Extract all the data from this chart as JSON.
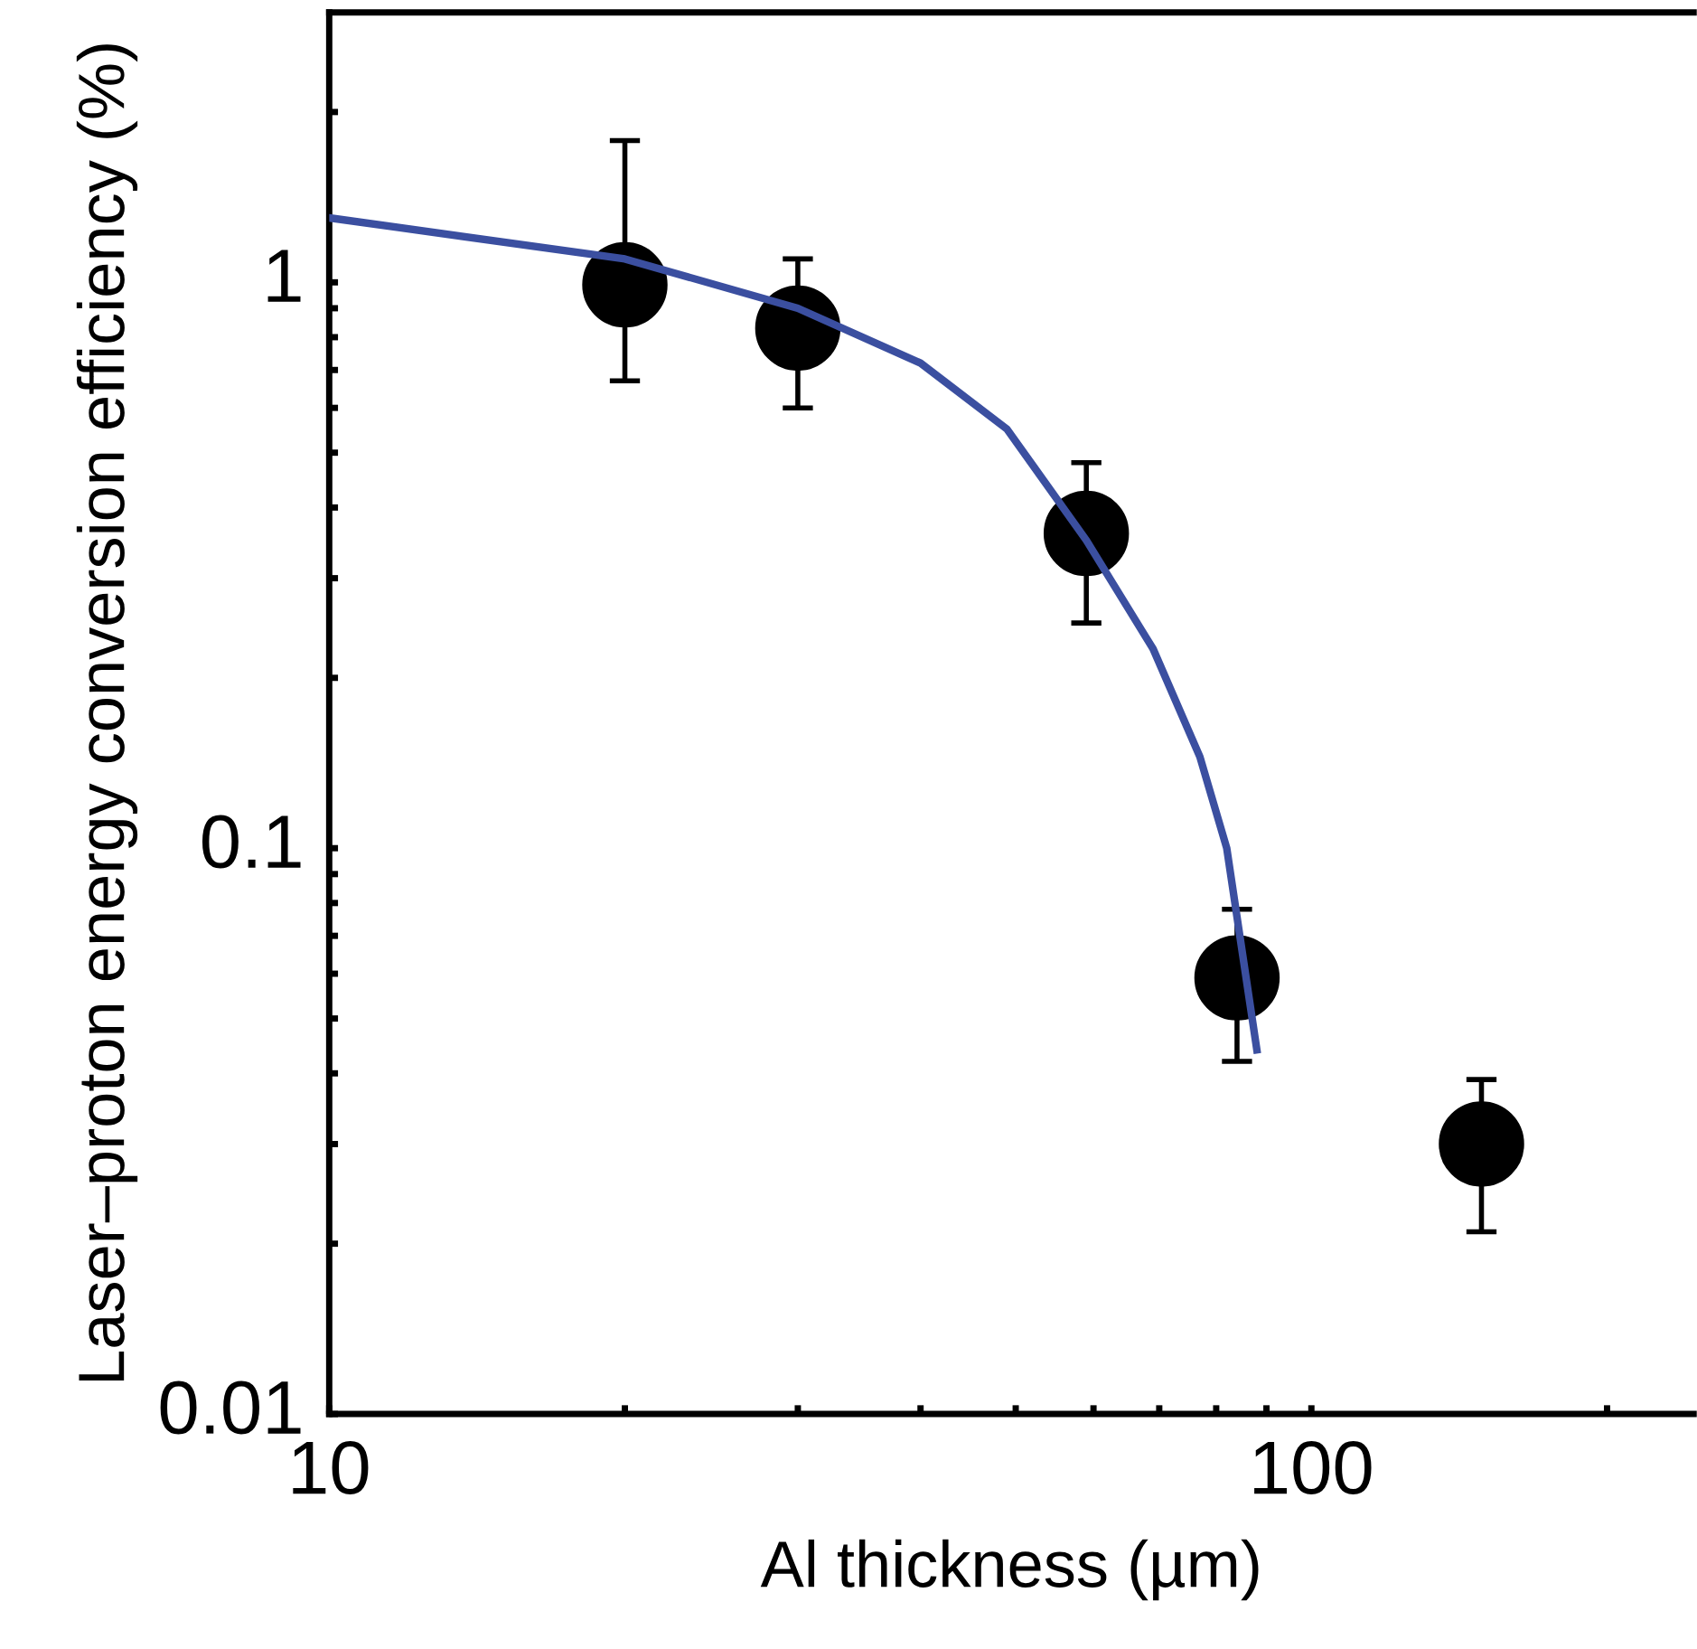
{
  "chart_data": {
    "type": "scatter",
    "xlabel": "Al thickness (µm)",
    "ylabel": "Laser–proton energy conversion efficiency (%)",
    "log": "xy",
    "xlim": [
      10,
      245
    ],
    "ylim": [
      0.01,
      3
    ],
    "xticks": [
      10,
      {
        "value": 20,
        "label": null
      },
      {
        "value": 30,
        "label": null
      },
      {
        "value": 40,
        "label": null
      },
      {
        "value": 50,
        "label": null
      },
      {
        "value": 60,
        "label": null
      },
      {
        "value": 70,
        "label": null
      },
      {
        "value": 80,
        "label": null
      },
      {
        "value": 90,
        "label": null
      },
      100,
      {
        "value": 200,
        "label": null
      }
    ],
    "yticks": [
      0.01,
      {
        "value": 0.02,
        "label": null
      },
      {
        "value": 0.03,
        "label": null
      },
      {
        "value": 0.04,
        "label": null
      },
      {
        "value": 0.05,
        "label": null
      },
      {
        "value": 0.06,
        "label": null
      },
      {
        "value": 0.07,
        "label": null
      },
      {
        "value": 0.08,
        "label": null
      },
      {
        "value": 0.09,
        "label": null
      },
      0.1,
      {
        "value": 0.2,
        "label": null
      },
      {
        "value": 0.3,
        "label": null
      },
      {
        "value": 0.4,
        "label": null
      },
      {
        "value": 0.5,
        "label": null
      },
      {
        "value": 0.6,
        "label": null
      },
      {
        "value": 0.7,
        "label": null
      },
      {
        "value": 0.8,
        "label": null
      },
      {
        "value": 0.9,
        "label": null
      },
      1,
      {
        "value": 2,
        "label": null
      }
    ],
    "grid": false,
    "legend": false,
    "series": [
      {
        "color": "#000000",
        "marker": "circle",
        "x": [
          20,
          30,
          59,
          84,
          149
        ],
        "values": [
          0.99,
          0.83,
          0.36,
          0.059,
          0.03
        ],
        "errors": [
          [
            0.67,
            1.78
          ],
          [
            0.6,
            1.1
          ],
          [
            0.25,
            0.48
          ],
          [
            0.042,
            0.078
          ],
          [
            0.021,
            0.039
          ]
        ]
      },
      {
        "type": "line",
        "color": "#3b4fa0",
        "marker": "none",
        "line_style": "solid",
        "x": [
          10,
          20,
          30,
          40,
          49,
          59,
          69,
          77,
          82,
          88
        ],
        "values": [
          1.3,
          1.1,
          0.9,
          0.72,
          0.55,
          0.35,
          0.225,
          0.145,
          0.1,
          0.044
        ]
      }
    ]
  }
}
